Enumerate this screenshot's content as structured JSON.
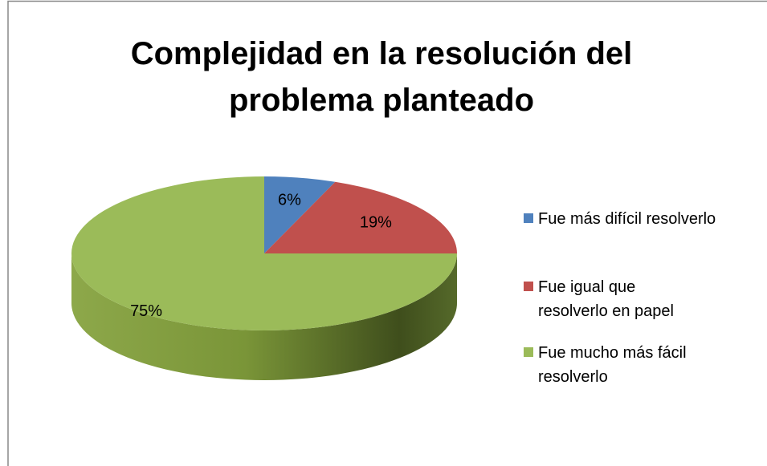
{
  "chart_data": {
    "type": "pie",
    "title": "Complejidad en la resolución del problema planteado",
    "categories": [
      "Fue más difícil resolverlo",
      "Fue igual que resolverlo en papel",
      "Fue mucho más fácil resolverlo"
    ],
    "values": [
      6,
      19,
      75
    ],
    "value_labels": [
      "6%",
      "19%",
      "75%"
    ],
    "colors": [
      "#4f81bd",
      "#c0504d",
      "#9bbb59"
    ],
    "legend": "right"
  }
}
